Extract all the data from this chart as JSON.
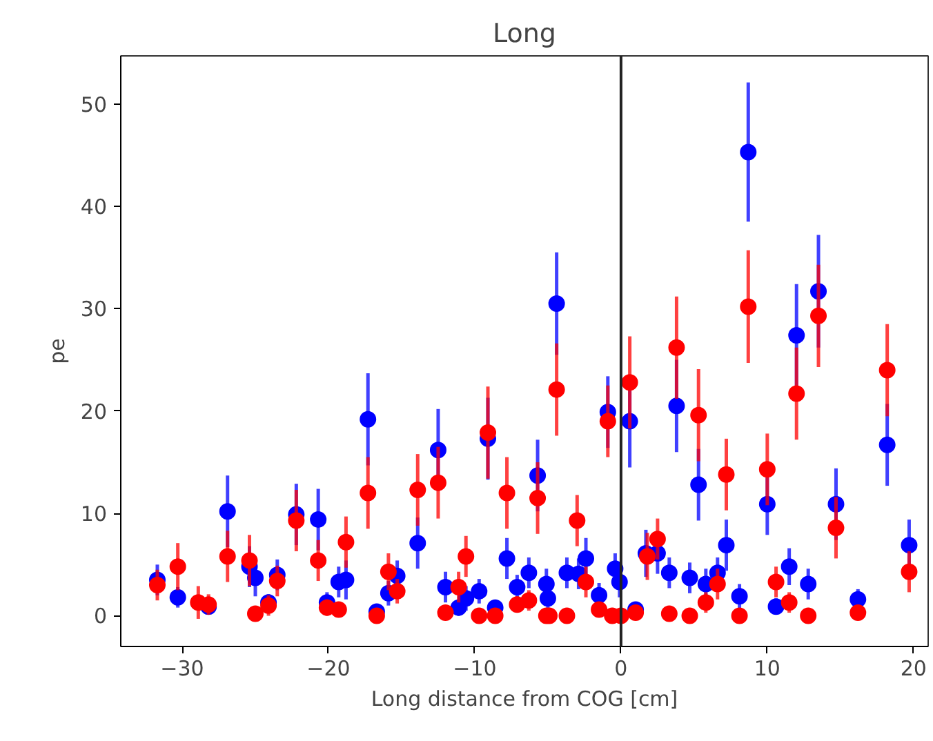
{
  "chart_data": {
    "type": "scatter",
    "title": "Long",
    "xlabel": "Long distance from COG [cm]",
    "ylabel": "pe",
    "xlim": [
      -34.2,
      21.0
    ],
    "ylim": [
      -3,
      54.7
    ],
    "xticks": [
      -30,
      -20,
      -10,
      0,
      10,
      20
    ],
    "yticks": [
      0,
      10,
      20,
      30,
      40,
      50
    ],
    "grid": false,
    "marker": "circle",
    "ref_lines": [
      {
        "axis": "x",
        "value": 0,
        "color": "#222222"
      }
    ],
    "series": [
      {
        "color": "#0000ff",
        "x": [
          -31.7,
          -30.3,
          -28.9,
          -28.2,
          -26.9,
          -25.4,
          -25.0,
          -24.1,
          -23.5,
          -22.2,
          -20.7,
          -20.1,
          -19.3,
          -18.8,
          -17.3,
          -16.7,
          -15.9,
          -15.3,
          -13.9,
          -12.5,
          -12.0,
          -11.1,
          -10.6,
          -9.7,
          -9.1,
          -8.6,
          -7.8,
          -7.1,
          -6.3,
          -5.7,
          -5.1,
          -5.0,
          -4.4,
          -3.7,
          -2.9,
          -2.4,
          -1.5,
          -0.9,
          -0.4,
          -0.1,
          0.6,
          1.0,
          1.7,
          2.5,
          3.3,
          3.8,
          4.7,
          5.3,
          5.8,
          6.6,
          7.2,
          8.1,
          8.7,
          10.0,
          10.6,
          11.5,
          12.0,
          12.8,
          13.5,
          14.7,
          16.2,
          18.2,
          19.7
        ],
        "values": [
          3.5,
          1.8,
          null,
          0.9,
          10.2,
          4.8,
          3.7,
          1.3,
          4.0,
          9.9,
          9.4,
          1.3,
          3.3,
          3.5,
          19.2,
          0.4,
          2.2,
          3.9,
          7.1,
          16.2,
          2.8,
          0.8,
          1.7,
          2.4,
          17.3,
          0.8,
          5.6,
          2.8,
          4.2,
          13.7,
          3.1,
          1.7,
          30.5,
          4.2,
          4.1,
          5.6,
          2.0,
          19.9,
          4.6,
          3.3,
          19.0,
          0.6,
          6.1,
          6.1,
          4.2,
          20.5,
          3.7,
          12.8,
          3.1,
          4.2,
          6.9,
          1.9,
          45.3,
          10.9,
          0.9,
          4.8,
          27.4,
          3.1,
          31.7,
          10.9,
          1.6,
          16.7,
          6.9
        ],
        "errors": [
          1.5,
          1,
          null,
          0.8,
          3.5,
          2,
          1.8,
          0.8,
          1.5,
          3,
          3,
          1,
          1.5,
          1.9,
          4.5,
          0.5,
          1.2,
          1.5,
          2.5,
          4,
          1.5,
          0.8,
          1.2,
          1.2,
          4,
          0.5,
          2,
          1.2,
          1.5,
          3.5,
          1.5,
          1.2,
          5,
          1.5,
          1.5,
          2,
          1.2,
          3.5,
          1.5,
          1.5,
          4.5,
          0.5,
          2.3,
          2,
          1.5,
          4.5,
          1.5,
          3.5,
          1.5,
          1.5,
          2.5,
          1.2,
          6.8,
          3,
          0.8,
          1.8,
          5,
          1.5,
          5.5,
          3.5,
          1,
          4,
          2.5
        ]
      },
      {
        "color": "#ff0000",
        "x": [
          -31.7,
          -30.3,
          -28.9,
          -28.2,
          -26.9,
          -25.4,
          -25.0,
          -24.1,
          -23.5,
          -22.2,
          -20.7,
          -20.1,
          -19.3,
          -18.8,
          -17.3,
          -16.7,
          -15.9,
          -15.3,
          -13.9,
          -12.5,
          -12.0,
          -11.1,
          -10.6,
          -9.7,
          -9.1,
          -8.6,
          -7.8,
          -7.1,
          -6.3,
          -5.7,
          -5.1,
          -4.9,
          -4.4,
          -3.7,
          -3.0,
          -2.4,
          -1.5,
          -0.9,
          -0.6,
          0.0,
          0.6,
          1.0,
          1.8,
          2.5,
          3.3,
          3.8,
          4.7,
          5.3,
          5.8,
          6.6,
          7.2,
          8.1,
          8.7,
          10.0,
          10.6,
          11.5,
          12.0,
          12.8,
          13.5,
          14.7,
          16.2,
          18.2,
          19.7
        ],
        "values": [
          3.0,
          4.8,
          1.3,
          1.1,
          5.8,
          5.4,
          0.2,
          1.0,
          3.4,
          9.3,
          5.4,
          0.8,
          0.6,
          7.2,
          12.0,
          0.0,
          4.3,
          2.4,
          12.3,
          13.0,
          0.3,
          2.8,
          5.8,
          0.0,
          17.9,
          0.0,
          12.0,
          1.1,
          1.5,
          11.5,
          0.0,
          0.0,
          22.1,
          0.0,
          9.3,
          3.3,
          0.6,
          19.0,
          0.0,
          0.0,
          22.8,
          0.3,
          5.8,
          7.5,
          0.2,
          26.2,
          0.0,
          19.6,
          1.3,
          3.1,
          13.8,
          0.0,
          30.2,
          14.3,
          3.3,
          1.3,
          21.7,
          0.0,
          29.3,
          8.6,
          0.3,
          24.0,
          4.3
        ],
        "errors": [
          1.5,
          2.3,
          1.6,
          1,
          2.5,
          2.5,
          0.3,
          1,
          1.5,
          3,
          2,
          0.8,
          0.6,
          2.5,
          3.5,
          0.3,
          1.8,
          1.2,
          3.5,
          3.5,
          0.3,
          1.5,
          2,
          0.3,
          4.5,
          0.3,
          3.5,
          0.8,
          1,
          3.5,
          0.3,
          0.3,
          4.5,
          0.3,
          2.5,
          1.5,
          0.6,
          3.5,
          0.3,
          0.3,
          4.5,
          0.3,
          2.3,
          2,
          0.3,
          5,
          0.3,
          4.5,
          1,
          1.5,
          3.5,
          0.3,
          5.5,
          3.5,
          1.5,
          1,
          4.5,
          0.3,
          5,
          3,
          0.3,
          4.5,
          2
        ]
      }
    ]
  }
}
